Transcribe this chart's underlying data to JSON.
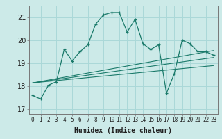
{
  "xlabel": "Humidex (Indice chaleur)",
  "ylabel": "",
  "background_color": "#cceae8",
  "grid_color": "#aad8d8",
  "line_color": "#1a7a6a",
  "xlim": [
    -0.5,
    23.5
  ],
  "ylim": [
    16.8,
    21.5
  ],
  "yticks": [
    17,
    18,
    19,
    20,
    21
  ],
  "xtick_labels": [
    "0",
    "1",
    "2",
    "3",
    "4",
    "5",
    "6",
    "7",
    "8",
    "9",
    "10",
    "11",
    "12",
    "13",
    "14",
    "15",
    "16",
    "17",
    "18",
    "19",
    "20",
    "21",
    "22",
    "23"
  ],
  "main_series": [
    [
      0,
      17.6
    ],
    [
      1,
      17.45
    ],
    [
      2,
      18.05
    ],
    [
      3,
      18.2
    ],
    [
      4,
      19.6
    ],
    [
      5,
      19.1
    ],
    [
      6,
      19.5
    ],
    [
      7,
      19.8
    ],
    [
      8,
      20.7
    ],
    [
      9,
      21.1
    ],
    [
      10,
      21.2
    ],
    [
      11,
      21.2
    ],
    [
      12,
      20.35
    ],
    [
      13,
      20.9
    ],
    [
      14,
      19.85
    ],
    [
      15,
      19.6
    ],
    [
      16,
      19.8
    ],
    [
      17,
      17.7
    ],
    [
      18,
      18.55
    ],
    [
      19,
      20.0
    ],
    [
      20,
      19.85
    ],
    [
      21,
      19.5
    ],
    [
      22,
      19.5
    ],
    [
      23,
      19.35
    ]
  ],
  "linear_series_1": [
    [
      0,
      18.15
    ],
    [
      23,
      18.9
    ]
  ],
  "linear_series_2": [
    [
      0,
      18.15
    ],
    [
      23,
      19.25
    ]
  ],
  "linear_series_3": [
    [
      0,
      18.15
    ],
    [
      23,
      19.55
    ]
  ]
}
